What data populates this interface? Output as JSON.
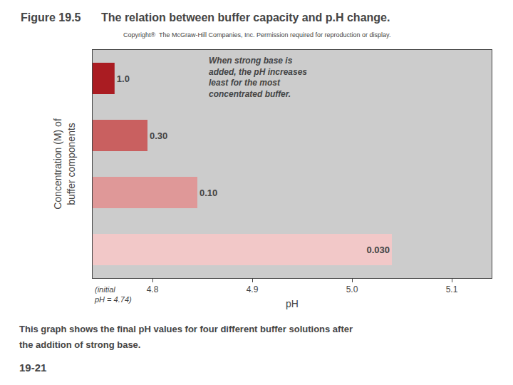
{
  "chart_data": {
    "type": "bar",
    "orientation": "horizontal",
    "title": "The relation between buffer capacity and p.H change.",
    "xlabel": "pH",
    "ylabel": "Concentration (M) of\nbuffer components",
    "categories": [
      "1.0",
      "0.30",
      "0.10",
      "0.030"
    ],
    "base": 4.74,
    "values": [
      4.762,
      4.795,
      4.845,
      5.04
    ],
    "colors": [
      "#aa1c22",
      "#c96060",
      "#df9898",
      "#f2c8c8"
    ],
    "background": "#cccccc",
    "xlim": [
      4.74,
      5.14
    ],
    "xticks": [
      4.8,
      4.9,
      {
        "value": 5.0,
        "label": "5.0"
      },
      5.1
    ],
    "grid": false,
    "tick_labels": "x",
    "annotations": [
      "Figure 19.5",
      "Copyright®  The McGraw-Hill Companies, Inc. Permission required for reproduction or display.",
      "When strong base is\nadded, the pH increases\nleast for the most\nconcentrated buffer.",
      "(initial\npH = 4.74)",
      "This graph shows the final pH values for four different buffer solutions after",
      "the addition of strong base.",
      "19-21"
    ]
  }
}
